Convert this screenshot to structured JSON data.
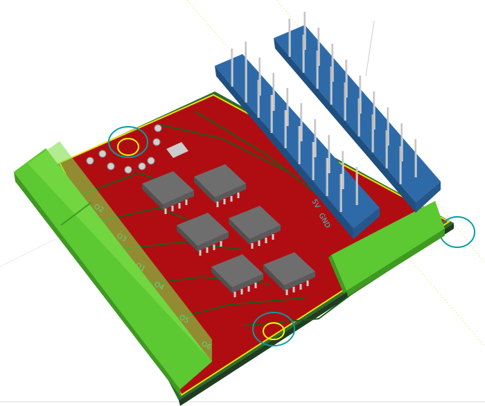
{
  "silkscreen": {
    "outputs": [
      "O2",
      "O3",
      "O1",
      "O4",
      "O5",
      "O6"
    ],
    "power": [
      "5V",
      "GND"
    ]
  }
}
